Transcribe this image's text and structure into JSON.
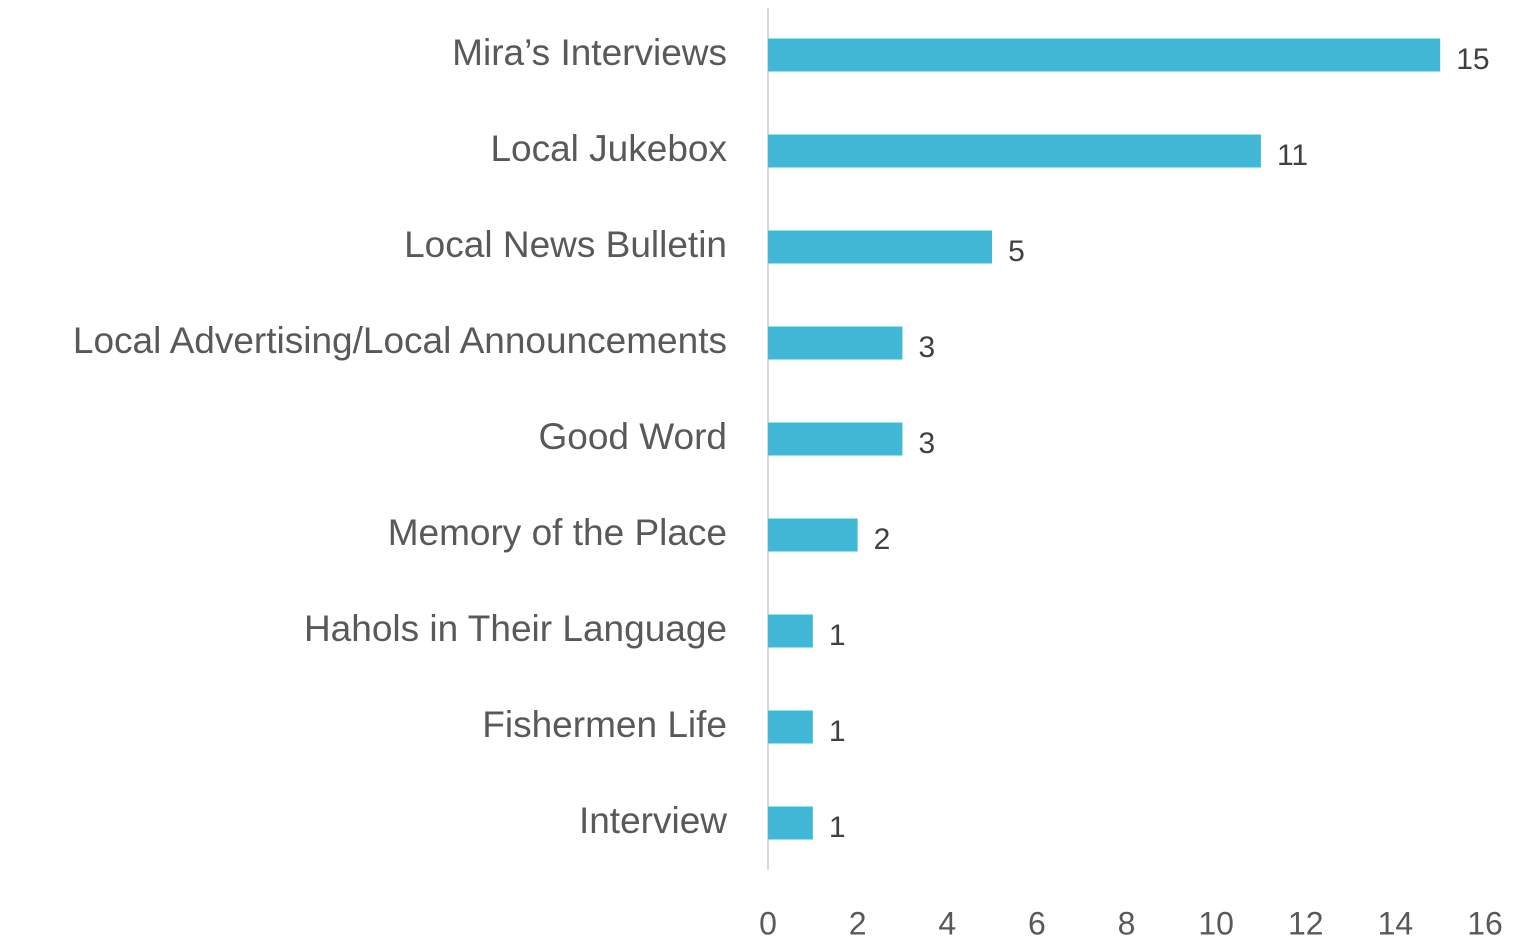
{
  "chart_data": {
    "type": "bar",
    "categories": [
      "Mira’s Interviews",
      "Local Jukebox",
      "Local News Bulletin",
      "Local Advertising/Local Announcements",
      "Good Word",
      "Memory of the Place",
      "Hahols in Their Language",
      "Fishermen Life",
      "Interview"
    ],
    "values": [
      15,
      11,
      5,
      3,
      3,
      2,
      1,
      1,
      1
    ],
    "color": "#41b8d5",
    "xlim": [
      0,
      16
    ],
    "xticks": [
      0,
      2,
      4,
      6,
      8,
      10,
      12,
      14,
      16
    ],
    "grid": false
  }
}
